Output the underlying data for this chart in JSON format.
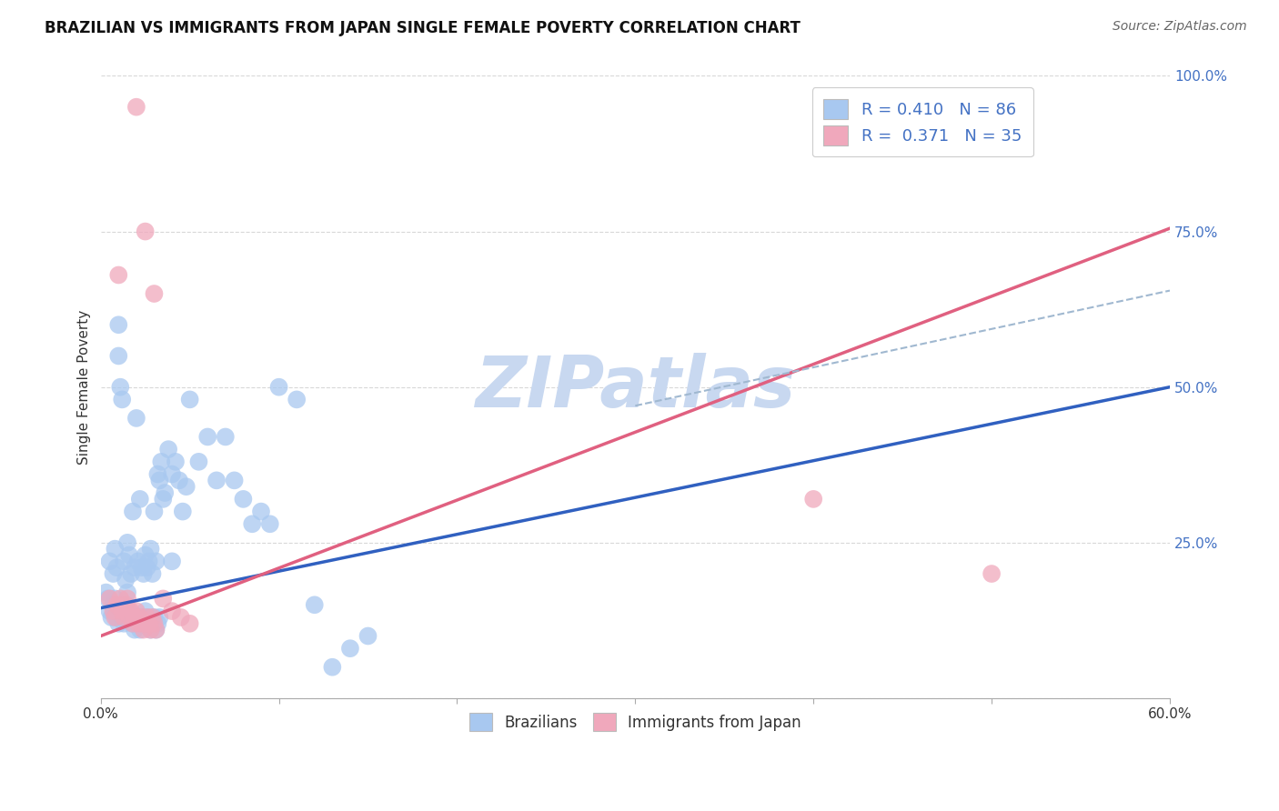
{
  "title": "BRAZILIAN VS IMMIGRANTS FROM JAPAN SINGLE FEMALE POVERTY CORRELATION CHART",
  "source": "Source: ZipAtlas.com",
  "ylabel": "Single Female Poverty",
  "yticks": [
    "",
    "25.0%",
    "50.0%",
    "75.0%",
    "100.0%"
  ],
  "ytick_vals": [
    0.0,
    0.25,
    0.5,
    0.75,
    1.0
  ],
  "xlim": [
    0.0,
    0.6
  ],
  "ylim": [
    0.0,
    1.0
  ],
  "blue_R": "0.410",
  "blue_N": "86",
  "pink_R": "0.371",
  "pink_N": "35",
  "blue_color": "#a8c8f0",
  "pink_color": "#f0a8bc",
  "blue_line_color": "#3060c0",
  "pink_line_color": "#e06080",
  "dashed_line_color": "#a0b8d0",
  "watermark": "ZIPatlas",
  "watermark_color": "#c8d8f0",
  "blue_scatter_x": [
    0.005,
    0.007,
    0.008,
    0.009,
    0.01,
    0.01,
    0.011,
    0.012,
    0.013,
    0.014,
    0.015,
    0.016,
    0.017,
    0.018,
    0.019,
    0.02,
    0.021,
    0.022,
    0.023,
    0.024,
    0.025,
    0.026,
    0.027,
    0.028,
    0.029,
    0.03,
    0.031,
    0.032,
    0.033,
    0.034,
    0.035,
    0.036,
    0.038,
    0.04,
    0.042,
    0.044,
    0.046,
    0.048,
    0.05,
    0.055,
    0.06,
    0.065,
    0.07,
    0.075,
    0.08,
    0.085,
    0.09,
    0.095,
    0.1,
    0.11,
    0.12,
    0.13,
    0.14,
    0.15,
    0.003,
    0.004,
    0.005,
    0.006,
    0.007,
    0.008,
    0.009,
    0.01,
    0.011,
    0.012,
    0.013,
    0.014,
    0.015,
    0.016,
    0.017,
    0.018,
    0.019,
    0.02,
    0.021,
    0.022,
    0.023,
    0.024,
    0.025,
    0.026,
    0.027,
    0.028,
    0.029,
    0.03,
    0.031,
    0.032,
    0.033,
    0.04
  ],
  "blue_scatter_y": [
    0.22,
    0.2,
    0.24,
    0.21,
    0.55,
    0.6,
    0.5,
    0.48,
    0.22,
    0.19,
    0.25,
    0.23,
    0.2,
    0.3,
    0.21,
    0.45,
    0.22,
    0.32,
    0.21,
    0.2,
    0.23,
    0.21,
    0.22,
    0.24,
    0.2,
    0.3,
    0.22,
    0.36,
    0.35,
    0.38,
    0.32,
    0.33,
    0.4,
    0.36,
    0.38,
    0.35,
    0.3,
    0.34,
    0.48,
    0.38,
    0.42,
    0.35,
    0.42,
    0.35,
    0.32,
    0.28,
    0.3,
    0.28,
    0.5,
    0.48,
    0.15,
    0.05,
    0.08,
    0.1,
    0.17,
    0.16,
    0.14,
    0.13,
    0.15,
    0.16,
    0.13,
    0.12,
    0.14,
    0.13,
    0.12,
    0.15,
    0.17,
    0.14,
    0.13,
    0.12,
    0.11,
    0.13,
    0.12,
    0.11,
    0.13,
    0.12,
    0.14,
    0.13,
    0.12,
    0.11,
    0.12,
    0.13,
    0.11,
    0.12,
    0.13,
    0.22
  ],
  "pink_scatter_x": [
    0.005,
    0.007,
    0.008,
    0.009,
    0.01,
    0.011,
    0.012,
    0.013,
    0.014,
    0.015,
    0.016,
    0.017,
    0.018,
    0.019,
    0.02,
    0.021,
    0.022,
    0.023,
    0.024,
    0.025,
    0.026,
    0.027,
    0.028,
    0.029,
    0.03,
    0.031,
    0.035,
    0.04,
    0.045,
    0.05,
    0.02,
    0.025,
    0.03,
    0.4,
    0.5
  ],
  "pink_scatter_y": [
    0.16,
    0.14,
    0.13,
    0.15,
    0.68,
    0.16,
    0.14,
    0.13,
    0.15,
    0.16,
    0.13,
    0.14,
    0.12,
    0.13,
    0.14,
    0.12,
    0.13,
    0.12,
    0.11,
    0.12,
    0.13,
    0.12,
    0.11,
    0.13,
    0.12,
    0.11,
    0.16,
    0.14,
    0.13,
    0.12,
    0.95,
    0.75,
    0.65,
    0.32,
    0.2
  ],
  "blue_line_x": [
    0.0,
    0.6
  ],
  "blue_line_y": [
    0.145,
    0.5
  ],
  "pink_line_x": [
    0.0,
    0.6
  ],
  "pink_line_y": [
    0.1,
    0.755
  ],
  "dashed_line_x": [
    0.3,
    0.6
  ],
  "dashed_line_y": [
    0.47,
    0.655
  ],
  "background_color": "#ffffff",
  "grid_color": "#d8d8d8",
  "title_fontsize": 12,
  "axis_label_fontsize": 11,
  "tick_fontsize": 11,
  "source_fontsize": 10,
  "legend_fontsize": 13
}
